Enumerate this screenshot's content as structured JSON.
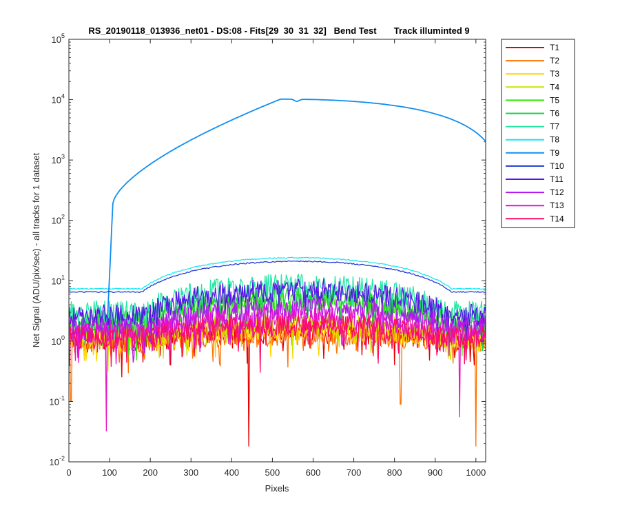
{
  "chart_data": {
    "type": "line",
    "title": "RS_20190118_013936_net01 - DS:08 - Fits[29  30  31  32]   Bend Test       Track illuminted 9",
    "xlabel": "Pixels",
    "ylabel": "Net Signal (ADU/pix/sec) - all tracks for 1 dataset",
    "xlim": [
      0,
      1024
    ],
    "ylim": [
      0.01,
      100000
    ],
    "yscale": "log",
    "x_ticks": [
      0,
      100,
      200,
      300,
      400,
      500,
      600,
      700,
      800,
      900,
      1000
    ],
    "y_tick_exponents": [
      -2,
      -1,
      0,
      1,
      2,
      3,
      4,
      5
    ],
    "legend_placement": "outside-right",
    "series": [
      {
        "name": "T1",
        "color": "#e60000",
        "peak": 1.4,
        "noisy": true,
        "dips": [
          [
            442,
            0.018
          ]
        ]
      },
      {
        "name": "T2",
        "color": "#ff7300",
        "peak": 1.3,
        "noisy": true,
        "dips": [
          [
            5,
            0.1
          ],
          [
            815,
            0.09
          ],
          [
            1000,
            0.018
          ]
        ]
      },
      {
        "name": "T3",
        "color": "#ffd400",
        "peak": 1.6,
        "noisy": true,
        "dips": []
      },
      {
        "name": "T4",
        "color": "#c8e600",
        "peak": 2.0,
        "noisy": true,
        "dips": []
      },
      {
        "name": "T5",
        "color": "#33e600",
        "peak": 4.6,
        "noisy": true,
        "dips": []
      },
      {
        "name": "T6",
        "color": "#1fd24a",
        "peak": 5.2,
        "noisy": true,
        "dips": []
      },
      {
        "name": "T7",
        "color": "#26e6a6",
        "peak": 8.4,
        "noisy": true,
        "dips": []
      },
      {
        "name": "T8",
        "color": "#19e6f2",
        "peak": 24,
        "noisy": false,
        "dips": []
      },
      {
        "name": "T9",
        "color": "#0f8ef0",
        "peak": 10200,
        "noisy": false,
        "dips": []
      },
      {
        "name": "T10",
        "color": "#1f3ad6",
        "peak": 21,
        "noisy": false,
        "dips": []
      },
      {
        "name": "T11",
        "color": "#5a14e6",
        "peak": 7.0,
        "noisy": true,
        "dips": []
      },
      {
        "name": "T12",
        "color": "#b414f0",
        "peak": 3.4,
        "noisy": true,
        "dips": []
      },
      {
        "name": "T13",
        "color": "#e614c8",
        "peak": 2.4,
        "noisy": true,
        "dips": [
          [
            92,
            0.032
          ],
          [
            960,
            0.055
          ]
        ]
      },
      {
        "name": "T14",
        "color": "#ff0a64",
        "peak": 1.8,
        "noisy": true,
        "dips": [
          [
            470,
            0.3
          ]
        ]
      }
    ]
  }
}
